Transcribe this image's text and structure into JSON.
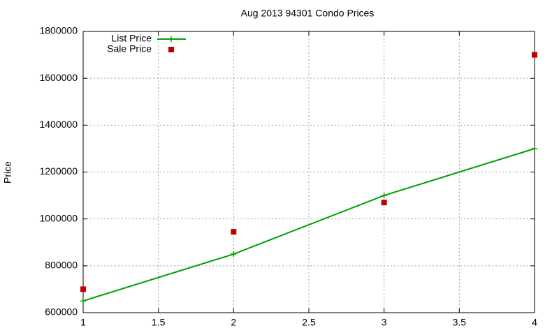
{
  "chart_data": {
    "type": "line",
    "title": "Aug 2013 94301 Condo Prices",
    "y_label": "Price",
    "x": [
      1,
      2,
      3,
      4
    ],
    "series": [
      {
        "name": "List Price",
        "color": "#00a000",
        "line": true,
        "marker": "plus",
        "values": [
          650000,
          850000,
          1100000,
          1300000
        ]
      },
      {
        "name": "Sale Price",
        "color": "#c00000",
        "line": false,
        "marker": "square",
        "values": [
          700000,
          945000,
          1070000,
          1700000
        ]
      }
    ],
    "xlim": [
      1,
      4
    ],
    "xticks": [
      1,
      1.5,
      2,
      2.5,
      3,
      3.5,
      4
    ],
    "ylim": [
      600000,
      1800000
    ],
    "yticks": [
      600000,
      800000,
      1000000,
      1200000,
      1400000,
      1600000,
      1800000
    ],
    "grid": true,
    "legend": "top-left"
  }
}
